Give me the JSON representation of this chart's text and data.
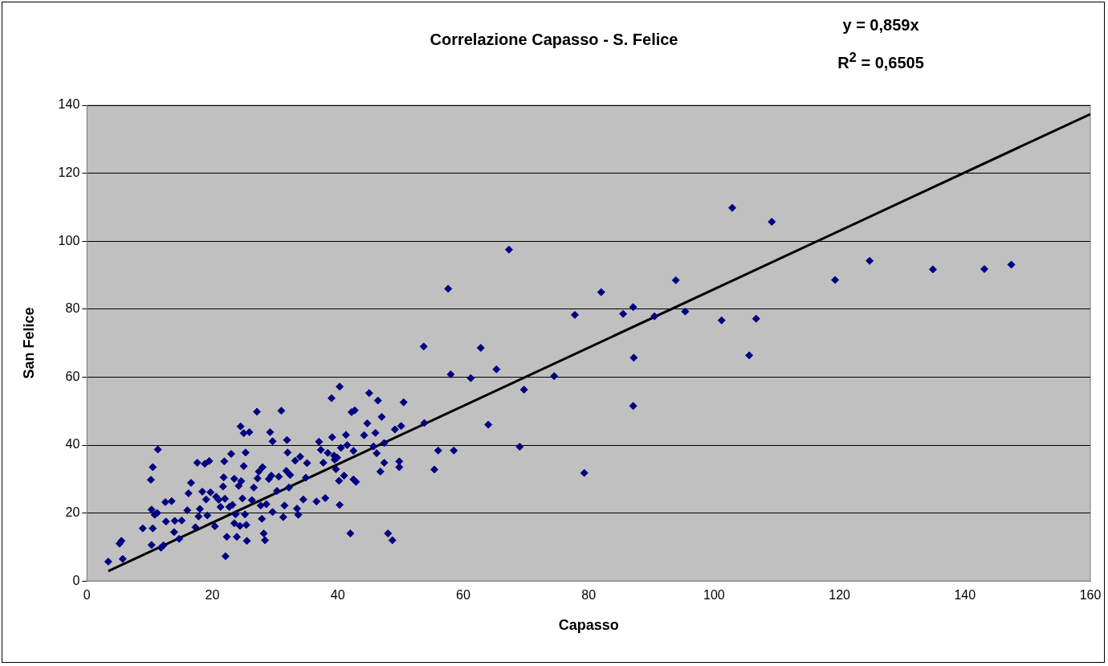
{
  "chart_data": {
    "type": "scatter",
    "title": "Correlazione Capasso - S. Felice",
    "xlabel": "Capasso",
    "ylabel": "San Felice",
    "annotations": [
      "y = 0,859x",
      "R$^{2}$ = 0,6505"
    ],
    "xlim": [
      0,
      160
    ],
    "ylim": [
      0,
      140
    ],
    "xticks": [
      0,
      20,
      40,
      60,
      80,
      100,
      120,
      140,
      160
    ],
    "yticks": [
      0,
      20,
      40,
      60,
      80,
      100,
      120,
      140
    ],
    "grid": "y",
    "marker": "diamond",
    "series": [
      {
        "color": "#000080",
        "x": [
          53.7,
          53.8,
          55.4,
          56,
          57.6,
          58,
          58.5,
          61.2,
          62.8,
          64,
          65.3,
          67.3,
          69,
          69.7,
          74.5,
          77.8,
          79.3,
          82,
          85.5,
          87.1,
          87.1,
          87.2,
          90.5,
          93.9,
          95.4,
          101.2,
          102.9,
          105.6,
          106.7,
          109.2,
          119.3,
          124.8,
          134.9,
          143.1,
          147.4,
          3.4,
          5.2,
          5.5,
          5.7,
          8.9,
          10.3,
          10.2,
          10.5,
          10.3,
          10.5,
          10.8,
          11.2,
          11.3,
          11.8,
          12.2,
          12.5,
          12.6,
          13.5,
          13.9,
          14,
          14.7,
          15.1,
          16,
          16.2,
          16.6,
          17.3,
          17.6,
          17.8,
          18,
          18.4,
          18.8,
          19,
          19.2,
          19.5,
          19.7,
          20.4,
          20.6,
          21,
          21.3,
          21.7,
          21.8,
          21.9,
          22.1,
          22,
          22.3,
          22.7,
          23,
          23.2,
          23.5,
          23.5,
          23.7,
          23.9,
          24.2,
          24.4,
          24.6,
          24.5,
          24.8,
          25,
          25,
          25.2,
          25.3,
          25.4,
          25.5,
          25.9,
          26.3,
          26.6,
          27.1,
          27.2,
          27.4,
          27.7,
          27.9,
          28,
          28.2,
          28.4,
          28.6,
          29,
          29.2,
          29.4,
          29.6,
          29.6,
          30.3,
          30.6,
          31,
          31.3,
          31.5,
          31.8,
          31.9,
          32,
          32.2,
          32.4,
          33.2,
          33.5,
          33.7,
          34,
          34.5,
          34.9,
          35.1,
          36.6,
          37,
          37.3,
          37.7,
          38,
          38.4,
          39,
          39.1,
          39.4,
          39.5,
          39.7,
          39.9,
          40.2,
          40.3,
          40.3,
          40.5,
          41,
          41.3,
          41.5,
          42,
          42.2,
          42.5,
          42.5,
          42.7,
          42.9,
          44.2,
          44.7,
          45,
          45.7,
          46,
          46.2,
          46.4,
          46.8,
          47,
          47.4,
          47.4,
          48,
          48.7,
          49.1,
          49.8,
          49.8,
          50.1,
          50.5
        ],
        "values": [
          69,
          46.5,
          32.8,
          38.4,
          86,
          60.8,
          38.4,
          59.7,
          68.6,
          46,
          62.3,
          97.5,
          39.5,
          56.3,
          60.3,
          78.3,
          31.8,
          85,
          78.6,
          51.5,
          80.6,
          65.7,
          77.9,
          88.5,
          79.3,
          76.7,
          109.8,
          66.4,
          77.2,
          105.7,
          88.6,
          94.2,
          91.7,
          91.8,
          93.1,
          5.7,
          11,
          11.8,
          6.5,
          15.5,
          10.6,
          29.8,
          33.5,
          21,
          15.5,
          19.5,
          20,
          38.7,
          9.8,
          10.5,
          23.2,
          17.5,
          23.5,
          14.4,
          17.7,
          12.4,
          17.8,
          20.8,
          25.8,
          28.9,
          15.8,
          34.8,
          19,
          21.2,
          26.3,
          34.5,
          24,
          19.3,
          35.3,
          26.1,
          16.1,
          24.8,
          23.9,
          21.8,
          27.8,
          30.5,
          35.2,
          7.3,
          24.2,
          13,
          21.8,
          37.4,
          22.4,
          30.1,
          17,
          19.6,
          13,
          28,
          16.2,
          29.4,
          45.5,
          24.3,
          33.8,
          43.5,
          19.6,
          37.8,
          16.5,
          11.8,
          43.8,
          23.8,
          27.5,
          49.8,
          30.2,
          32.2,
          22.2,
          18.3,
          33.5,
          14,
          12,
          22.6,
          30,
          43.8,
          31,
          20.3,
          41.1,
          26.5,
          30.7,
          50.1,
          18.8,
          22.2,
          32.4,
          41.5,
          37.8,
          27.5,
          31.2,
          35.4,
          21.3,
          19.5,
          36.6,
          24,
          30.4,
          34.7,
          23.4,
          41,
          38.6,
          34.8,
          24.4,
          37.7,
          53.8,
          42.3,
          36.9,
          35.7,
          32.9,
          36.3,
          29.5,
          57.2,
          22.4,
          39.2,
          31,
          43,
          40,
          14,
          49.7,
          38.3,
          29.9,
          50.2,
          29.2,
          42.9,
          46.4,
          55.3,
          39.6,
          43.6,
          37.6,
          53.1,
          32.2,
          48.3,
          34.8,
          40.6,
          14,
          12,
          44.6,
          33.5,
          35.2,
          45.6,
          52.6
        ]
      },
      {
        "type": "line",
        "color": "#000000",
        "marker": "none",
        "line_style": "solid",
        "x": [
          3.4,
          160
        ],
        "values": [
          2.9,
          137.4
        ]
      }
    ]
  }
}
